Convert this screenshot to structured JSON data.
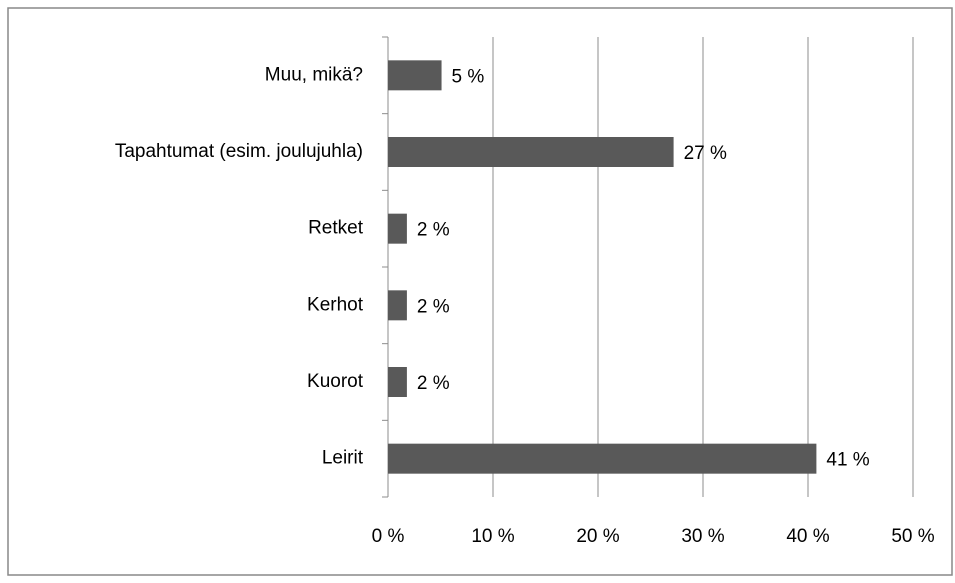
{
  "chart_data": {
    "type": "bar",
    "orientation": "horizontal",
    "categories": [
      "Muu, mikä?",
      "Tapahtumat (esim. joulujuhla)",
      "Retket",
      "Kerhot",
      "Kuorot",
      "Leirit"
    ],
    "values": [
      5.1,
      27.2,
      1.8,
      1.8,
      1.8,
      40.8
    ],
    "value_labels": [
      "5 %",
      "27 %",
      "2 %",
      "2 %",
      "2 %",
      "41 %"
    ],
    "color": "#595959",
    "xlim": [
      0,
      50
    ],
    "xticks": [
      {
        "value": 0,
        "label": "0 %"
      },
      {
        "value": 10,
        "label": "10 %"
      },
      {
        "value": 20,
        "label": "20 %"
      },
      {
        "value": 30,
        "label": "30 %"
      },
      {
        "value": 40,
        "label": "40 %"
      },
      {
        "value": 50,
        "label": "50 %"
      }
    ],
    "grid": true
  }
}
